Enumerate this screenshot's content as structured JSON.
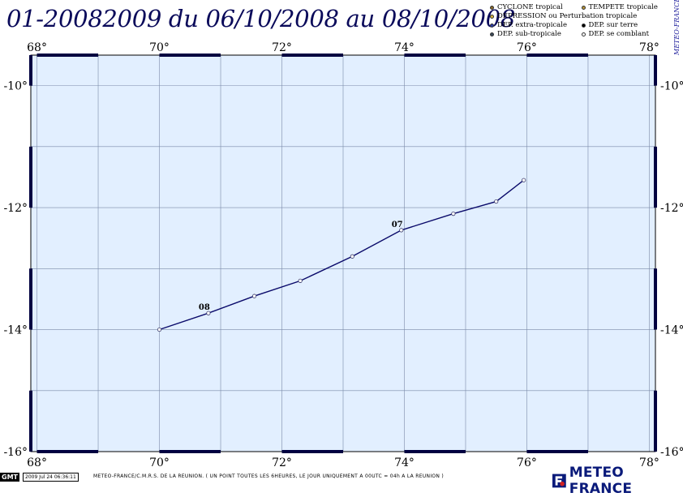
{
  "header": {
    "title": "01-20082009 du 06/10/2008 au 08/10/2008",
    "credit": "METEO-FRANCE"
  },
  "legend": {
    "items": [
      {
        "label": "CYCLONE tropical",
        "color": "#8b6a2a",
        "icon": "dot-icon"
      },
      {
        "label": "TEMPETE tropicale",
        "color": "#b8953a",
        "icon": "dot-icon"
      },
      {
        "label": "DEPRESSION ou Perturbation tropicale",
        "color": "#d9b43c",
        "icon": "dot-icon"
      },
      {
        "label": "DEP. extra-tropicale",
        "color": "#2a3aa8",
        "icon": "dot-icon"
      },
      {
        "label": "DEP. sur terre",
        "color": "#000000",
        "icon": "dot-icon"
      },
      {
        "label": "DEP. sub-tropicale",
        "color": "#3a4a5a",
        "icon": "dot-icon"
      },
      {
        "label": "DEP. se comblant",
        "color": "#ffffff",
        "icon": "dot-icon"
      }
    ]
  },
  "map": {
    "lon_ticks": [
      "68°",
      "70°",
      "72°",
      "74°",
      "76°",
      "78°"
    ],
    "lat_ticks": [
      "-10°",
      "-12°",
      "-14°",
      "-16°"
    ],
    "lon_range": [
      67.9,
      78.1
    ],
    "lat_range": [
      -16.0,
      -9.5
    ],
    "ocean_color": "#e2efff",
    "track_color": "#0a0a6a",
    "track": [
      {
        "lon": 75.95,
        "lat": -11.55
      },
      {
        "lon": 75.5,
        "lat": -11.9
      },
      {
        "lon": 74.8,
        "lat": -12.1
      },
      {
        "lon": 73.95,
        "lat": -12.37
      },
      {
        "lon": 73.15,
        "lat": -12.8
      },
      {
        "lon": 72.3,
        "lat": -13.2
      },
      {
        "lon": 71.55,
        "lat": -13.45
      },
      {
        "lon": 70.8,
        "lat": -13.73
      },
      {
        "lon": 70.0,
        "lat": -14.0
      }
    ],
    "day_labels": [
      {
        "text": "07",
        "lon": 73.95,
        "lat": -12.37
      },
      {
        "text": "08",
        "lon": 70.8,
        "lat": -13.73
      }
    ]
  },
  "footer": {
    "gmt_badge": "GMT",
    "timestamp": "2009 Jul 24 06:36:11",
    "note": "METEO-FRANCE/C.M.R.S. DE LA REUNION.  ( UN POINT TOUTES LES 6HEURES, LE JOUR UNIQUEMENT A 00UTC = 04h A LA REUNION )",
    "brand": "METEO FRANCE"
  }
}
